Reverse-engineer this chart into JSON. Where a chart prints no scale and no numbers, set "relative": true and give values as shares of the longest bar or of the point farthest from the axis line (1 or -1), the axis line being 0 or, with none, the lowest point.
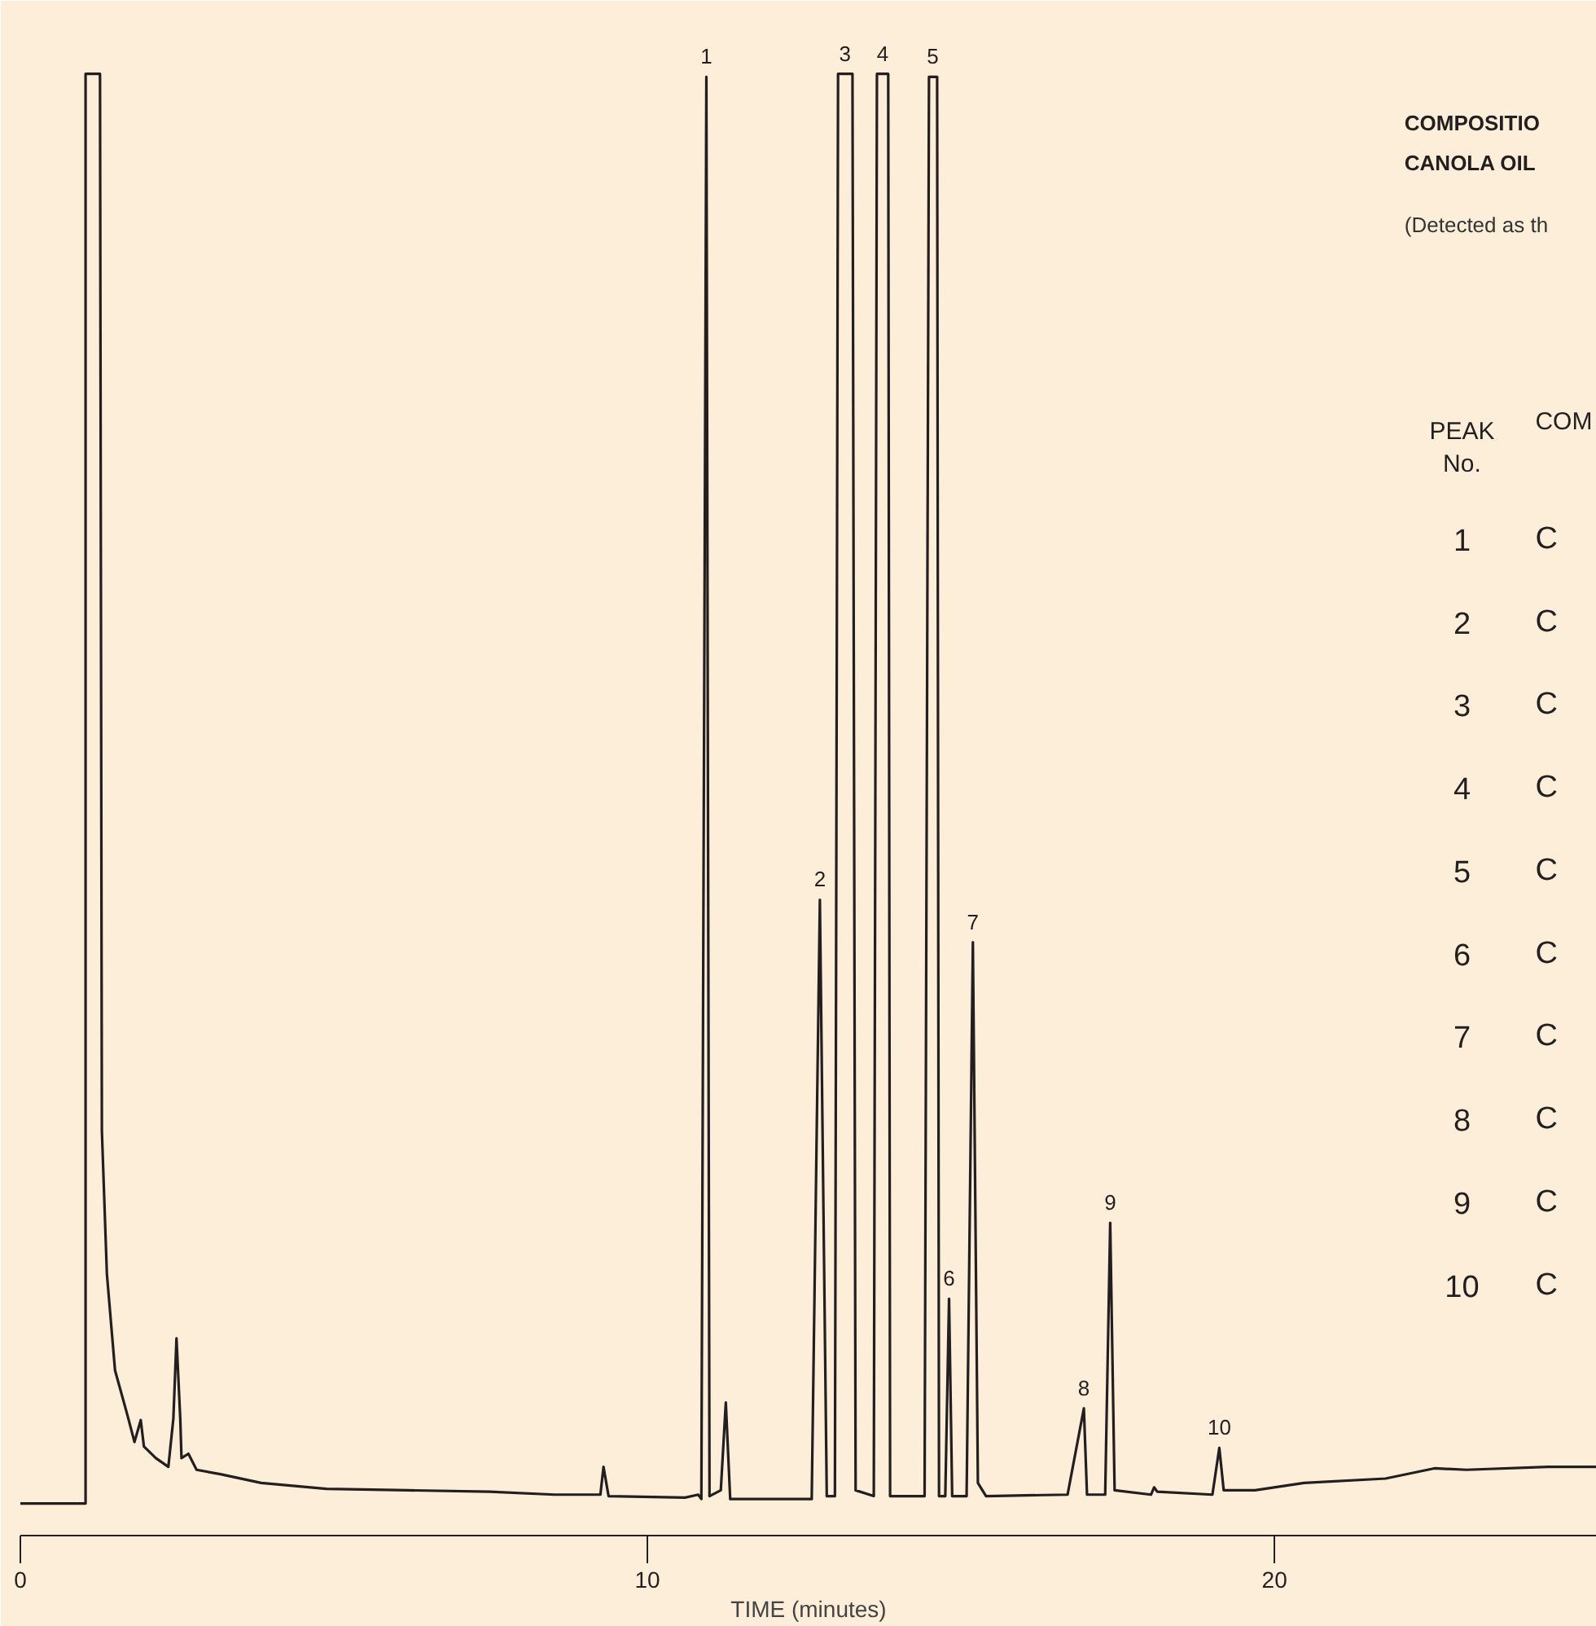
{
  "chart_data": {
    "type": "line",
    "relative": true,
    "title": "COMPOSITIO\nCANOLA OIL",
    "subtitle": "(Detected as th",
    "xlabel": "TIME (minutes)",
    "xlim": [
      0,
      25.14
    ],
    "xticks": [
      0,
      10,
      20
    ],
    "series": [
      {
        "color": "#231f20",
        "x": [
          0,
          1.04,
          1.04,
          1.27,
          1.3,
          1.38,
          1.51,
          1.71,
          1.82,
          1.92,
          1.97,
          2.16,
          2.36,
          2.44,
          2.49,
          2.55,
          2.57,
          2.68,
          2.81,
          3.19,
          3.84,
          4.88,
          6.18,
          7.48,
          8.52,
          9.25,
          9.3,
          9.38,
          10.6,
          10.81,
          10.86,
          10.94,
          10.99,
          11.17,
          11.25,
          11.32,
          12.62,
          12.75,
          12.86,
          12.99,
          13.04,
          13.27,
          13.32,
          13.61,
          13.66,
          13.84,
          13.87,
          14.42,
          14.49,
          14.62,
          14.65,
          14.75,
          14.81,
          14.86,
          15.09,
          15.19,
          15.27,
          15.4,
          16.7,
          16.96,
          17.01,
          17.3,
          17.38,
          17.45,
          18.03,
          18.08,
          18.13,
          19.01,
          19.12,
          19.19,
          19.69,
          20.47,
          21.77,
          22.55,
          23.06,
          24.36,
          25.14
        ],
        "values": [
          0.022,
          0.022,
          1.0,
          1.0,
          0.277,
          0.179,
          0.113,
          0.082,
          0.064,
          0.079,
          0.061,
          0.053,
          0.047,
          0.08,
          0.135,
          0.08,
          0.053,
          0.056,
          0.045,
          0.042,
          0.036,
          0.032,
          0.031,
          0.03,
          0.028,
          0.028,
          0.047,
          0.027,
          0.026,
          0.028,
          0.025,
          0.998,
          0.027,
          0.031,
          0.091,
          0.025,
          0.025,
          0.435,
          0.027,
          0.027,
          1.0,
          1.0,
          0.031,
          0.027,
          1.0,
          1.0,
          0.027,
          0.027,
          0.998,
          0.998,
          0.027,
          0.027,
          0.162,
          0.027,
          0.027,
          0.406,
          0.036,
          0.027,
          0.028,
          0.087,
          0.028,
          0.028,
          0.214,
          0.031,
          0.028,
          0.033,
          0.03,
          0.028,
          0.06,
          0.031,
          0.031,
          0.036,
          0.039,
          0.046,
          0.045,
          0.047,
          0.047
        ]
      }
    ],
    "annotations": [
      {
        "text": "1",
        "x": 10.94,
        "y": 0.998
      },
      {
        "text": "2",
        "x": 12.75,
        "y": 0.435
      },
      {
        "text": "3",
        "x": 13.15,
        "y": 1.0
      },
      {
        "text": "4",
        "x": 13.75,
        "y": 1.0
      },
      {
        "text": "5",
        "x": 14.55,
        "y": 0.998
      },
      {
        "text": "6",
        "x": 14.81,
        "y": 0.162
      },
      {
        "text": "7",
        "x": 15.19,
        "y": 0.406
      },
      {
        "text": "8",
        "x": 16.96,
        "y": 0.087
      },
      {
        "text": "9",
        "x": 17.38,
        "y": 0.214
      },
      {
        "text": "10",
        "x": 19.12,
        "y": 0.06
      },
      "PEAK\nNo.",
      "COM",
      "1",
      "2",
      "3",
      "4",
      "5",
      "6",
      "7",
      "8",
      "9",
      "10",
      "C",
      "C",
      "C",
      "C",
      "C",
      "C",
      "C",
      "C",
      "C",
      "C"
    ]
  }
}
